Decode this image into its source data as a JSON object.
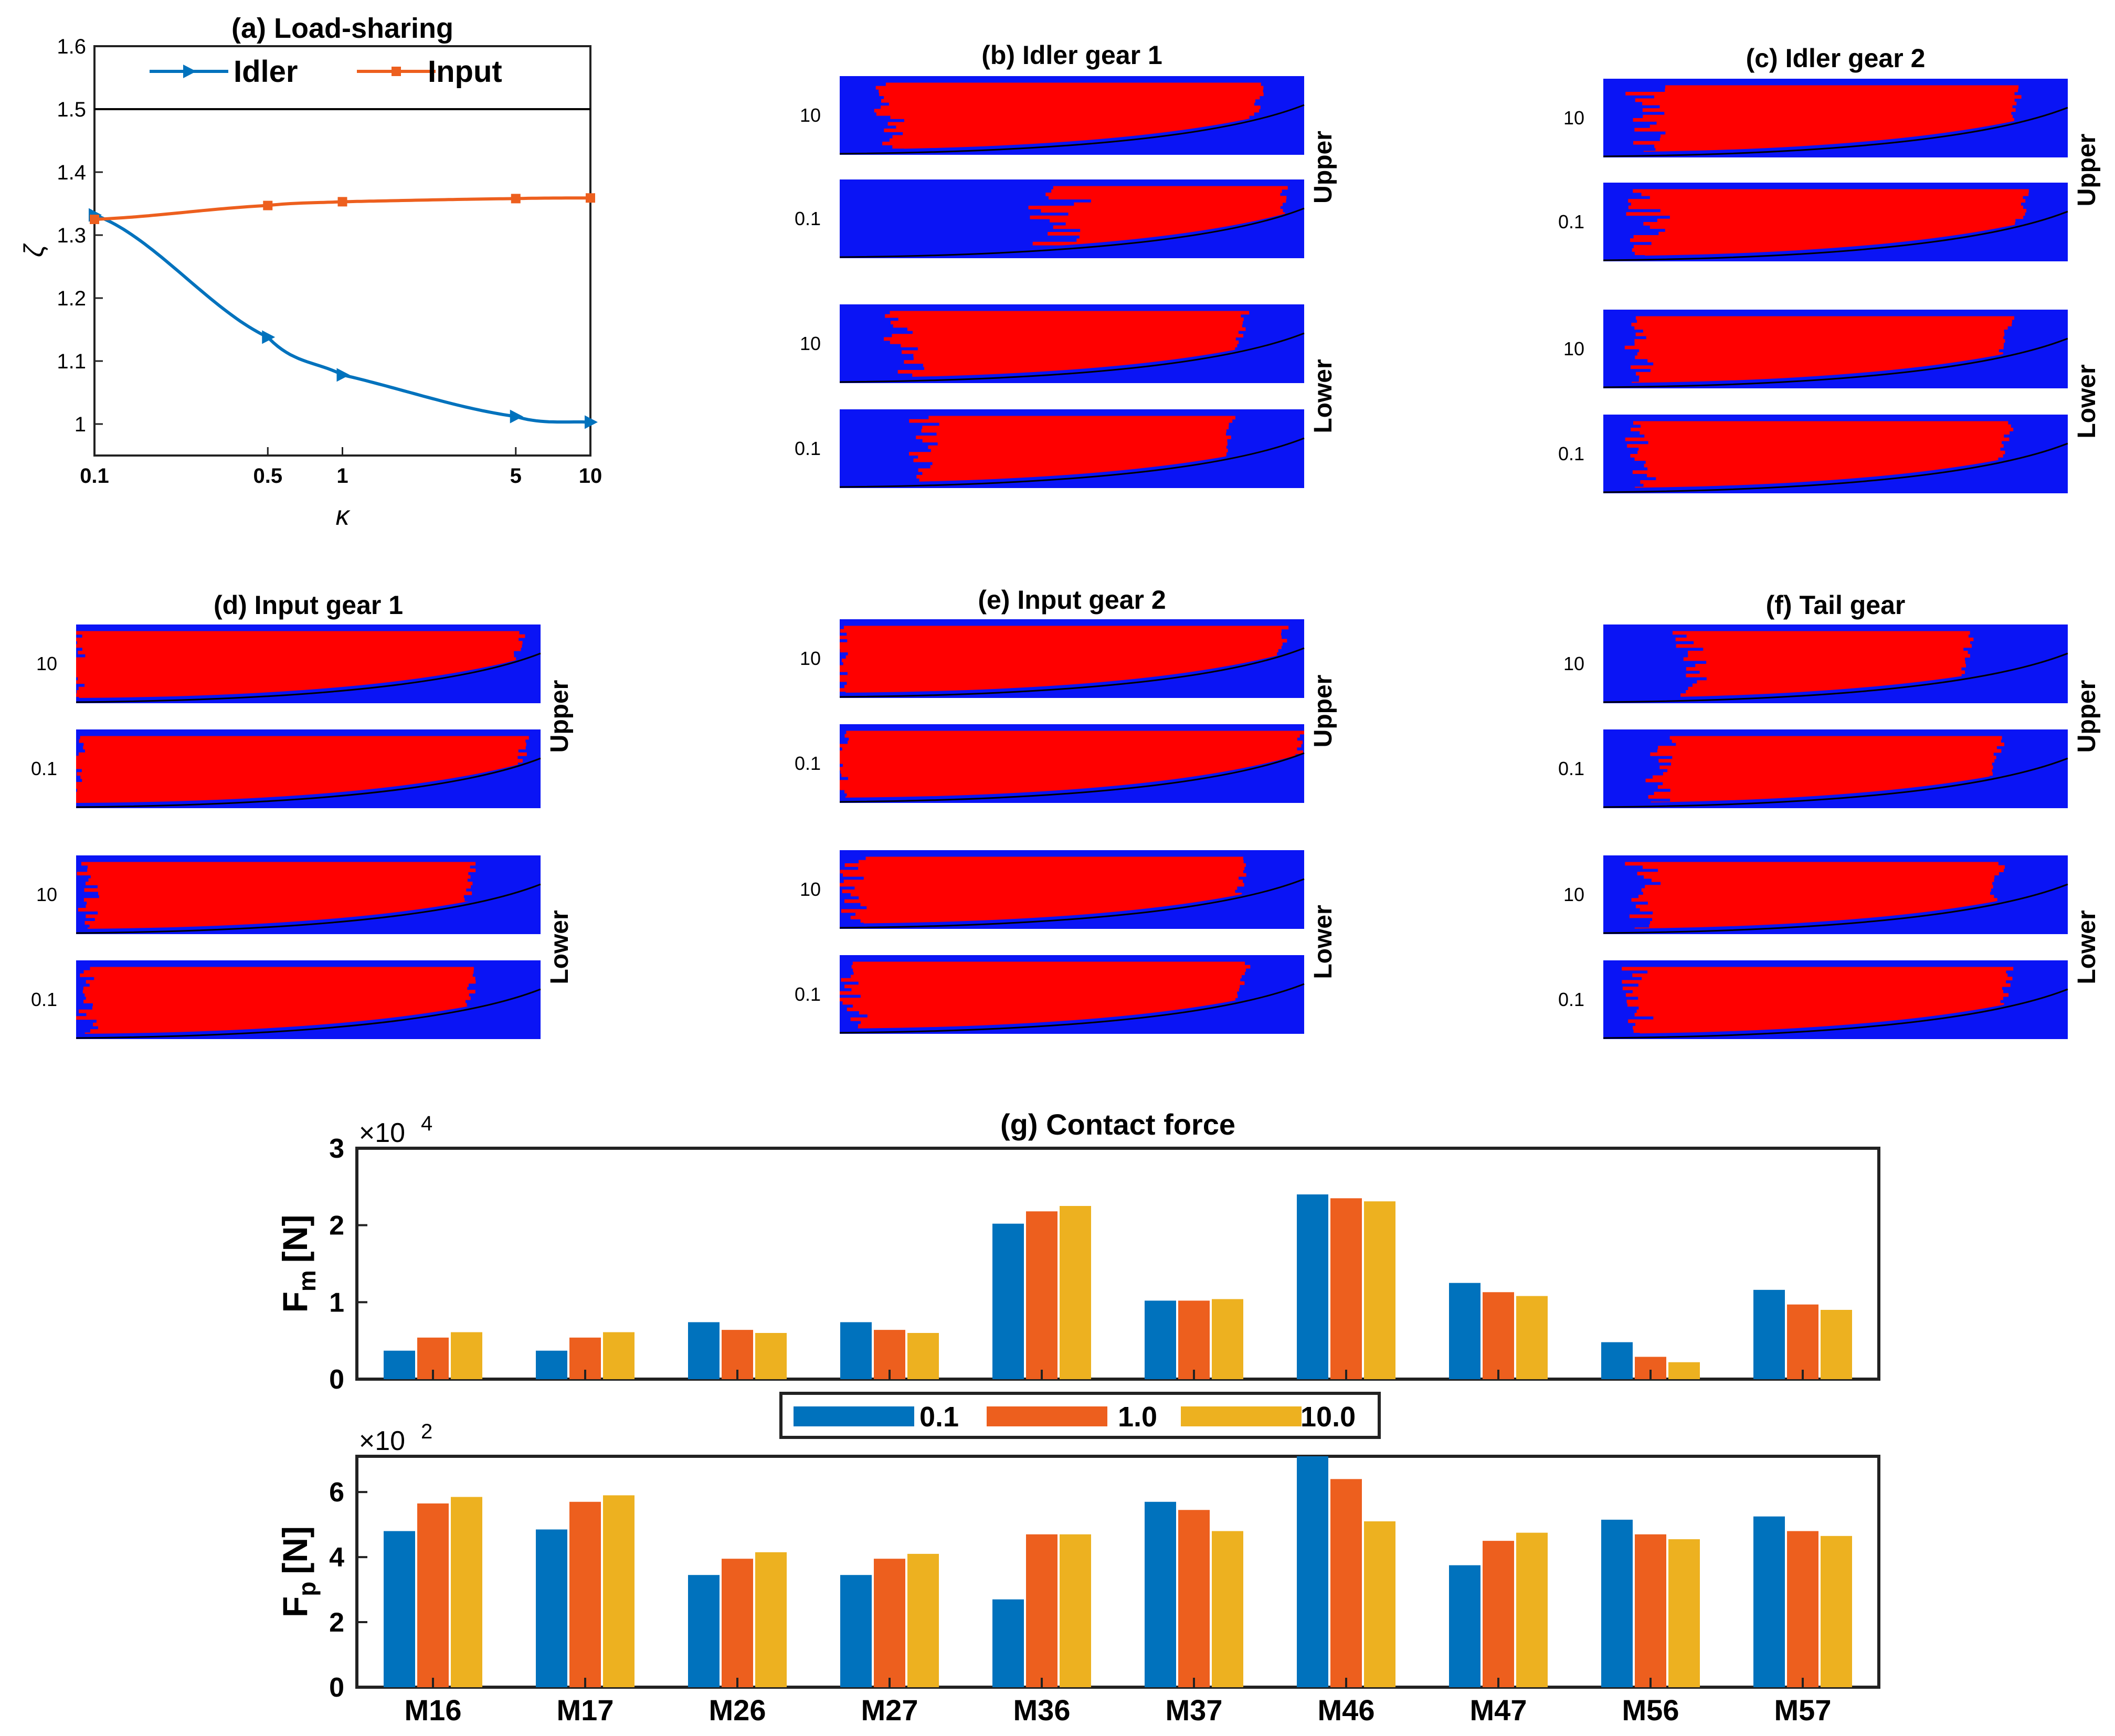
{
  "chart_data": [
    {
      "type": "line",
      "title": "(a) Load-sharing",
      "xlabel": "κ",
      "ylabel": "ζ",
      "xscale": "log",
      "xlim": [
        0.1,
        10
      ],
      "ylim": [
        0.95,
        1.6
      ],
      "x_ticks": [
        "0.1",
        "0.5",
        "1",
        "5",
        "10"
      ],
      "y_ticks": [
        "1",
        "1.1",
        "1.2",
        "1.3",
        "1.4",
        "1.5",
        "1.6"
      ],
      "reference_line": {
        "y": 1.5
      },
      "legend_position": "top",
      "series": [
        {
          "name": "Idler",
          "color": "#0072BD",
          "marker": "triangle-right",
          "x": [
            0.1,
            0.5,
            1,
            5,
            10
          ],
          "y": [
            1.332,
            1.138,
            1.078,
            1.012,
            1.003
          ]
        },
        {
          "name": "Input",
          "color": "#ED5F1E",
          "marker": "square",
          "x": [
            0.1,
            0.5,
            1,
            5,
            10
          ],
          "y": [
            1.325,
            1.347,
            1.353,
            1.358,
            1.359
          ]
        }
      ]
    },
    {
      "type": "heatmap",
      "panels": [
        {
          "title": "(b) Idler gear 1",
          "upper_label": "Upper",
          "lower_label": "Lower",
          "row_labels": [
            "10",
            "0.1",
            "10",
            "0.1"
          ]
        },
        {
          "title": "(c) Idler gear 2",
          "upper_label": "Upper",
          "lower_label": "Lower",
          "row_labels": [
            "10",
            "0.1",
            "10",
            "0.1"
          ]
        },
        {
          "title": "(d) Input gear 1",
          "upper_label": "Upper",
          "lower_label": "Lower",
          "row_labels": [
            "10",
            "0.1",
            "10",
            "0.1"
          ]
        },
        {
          "title": "(e) Input gear 2",
          "upper_label": "Upper",
          "lower_label": "Lower",
          "row_labels": [
            "10",
            "0.1",
            "10",
            "0.1"
          ]
        },
        {
          "title": "(f) Tail gear",
          "upper_label": "Upper",
          "lower_label": "Lower",
          "row_labels": [
            "10",
            "0.1",
            "10",
            "0.1"
          ]
        }
      ],
      "colors": {
        "background": "#0A14F5",
        "contact": "#FF0000"
      }
    },
    {
      "type": "bar",
      "title": "(g) Contact force",
      "categories": [
        "M16",
        "M17",
        "M26",
        "M27",
        "M36",
        "M37",
        "M46",
        "M47",
        "M56",
        "M57"
      ],
      "legend": [
        {
          "name": "0.1",
          "color": "#0072BD"
        },
        {
          "name": "1.0",
          "color": "#ED5F1E"
        },
        {
          "name": "10.0",
          "color": "#EDB120"
        }
      ],
      "subplots": [
        {
          "ylabel_main": "F",
          "ylabel_sub": "m",
          "ylabel_unit": "[N]",
          "exponent_base": "×10",
          "exponent_power": "4",
          "ylim": [
            0,
            3
          ],
          "y_ticks": [
            "0",
            "1",
            "2",
            "3"
          ],
          "series": [
            {
              "name": "0.1",
              "values": [
                0.37,
                0.37,
                0.74,
                0.74,
                2.02,
                1.02,
                2.4,
                1.25,
                0.48,
                1.16
              ]
            },
            {
              "name": "1.0",
              "values": [
                0.54,
                0.54,
                0.64,
                0.64,
                2.18,
                1.02,
                2.35,
                1.13,
                0.29,
                0.97
              ]
            },
            {
              "name": "10.0",
              "values": [
                0.61,
                0.61,
                0.6,
                0.6,
                2.25,
                1.04,
                2.31,
                1.08,
                0.22,
                0.9
              ]
            }
          ]
        },
        {
          "ylabel_main": "F",
          "ylabel_sub": "p",
          "ylabel_unit": "[N]",
          "exponent_base": "×10",
          "exponent_power": "2",
          "ylim": [
            0,
            7.1
          ],
          "y_ticks": [
            "0",
            "2",
            "4",
            "6"
          ],
          "series": [
            {
              "name": "0.1",
              "values": [
                4.8,
                4.85,
                3.45,
                3.45,
                2.7,
                5.7,
                7.1,
                3.75,
                5.15,
                5.25
              ]
            },
            {
              "name": "1.0",
              "values": [
                5.65,
                5.7,
                3.95,
                3.95,
                4.7,
                5.45,
                6.4,
                4.5,
                4.7,
                4.8
              ]
            },
            {
              "name": "10.0",
              "values": [
                5.85,
                5.9,
                4.15,
                4.1,
                4.7,
                4.8,
                5.1,
                4.75,
                4.55,
                4.65
              ]
            }
          ]
        }
      ]
    }
  ]
}
